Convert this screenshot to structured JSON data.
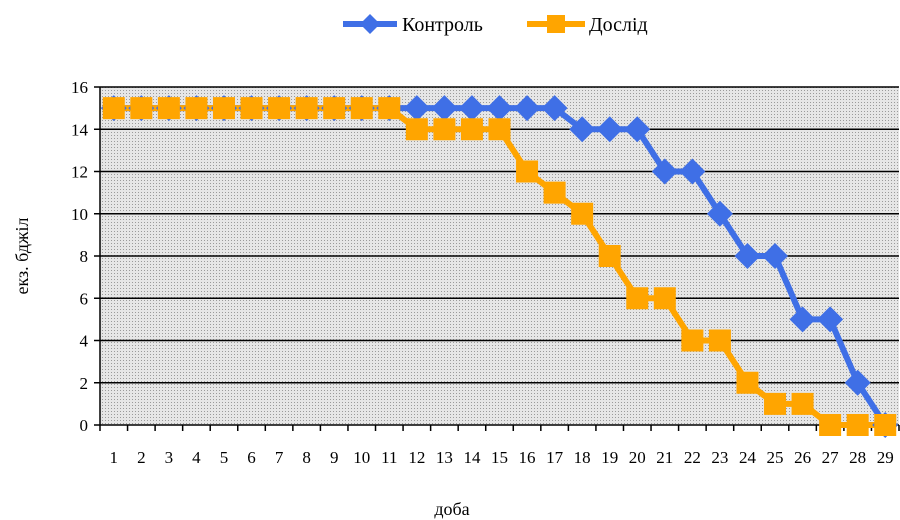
{
  "chart_data": {
    "type": "line",
    "title": "",
    "xlabel": "доба",
    "ylabel": "екз. бджіл",
    "x": [
      1,
      2,
      3,
      4,
      5,
      6,
      7,
      8,
      9,
      10,
      11,
      12,
      13,
      14,
      15,
      16,
      17,
      18,
      19,
      20,
      21,
      22,
      23,
      24,
      25,
      26,
      27,
      28,
      29
    ],
    "ylim": [
      0,
      16
    ],
    "yticks": [
      0,
      2,
      4,
      6,
      8,
      10,
      12,
      14,
      16
    ],
    "grid": true,
    "legend_position": "top-center",
    "series": [
      {
        "name": "Контроль",
        "color": "#3F6FE6",
        "marker": "diamond",
        "values": [
          15,
          15,
          15,
          15,
          15,
          15,
          15,
          15,
          15,
          15,
          15,
          15,
          15,
          15,
          15,
          15,
          15,
          14,
          14,
          14,
          12,
          12,
          10,
          8,
          8,
          5,
          5,
          2,
          0
        ]
      },
      {
        "name": "Дослід",
        "color": "#FFA500",
        "marker": "square",
        "values": [
          15,
          15,
          15,
          15,
          15,
          15,
          15,
          15,
          15,
          15,
          15,
          14,
          14,
          14,
          14,
          12,
          11,
          10,
          8,
          6,
          6,
          4,
          4,
          2,
          1,
          1,
          0,
          0,
          0
        ]
      }
    ]
  }
}
